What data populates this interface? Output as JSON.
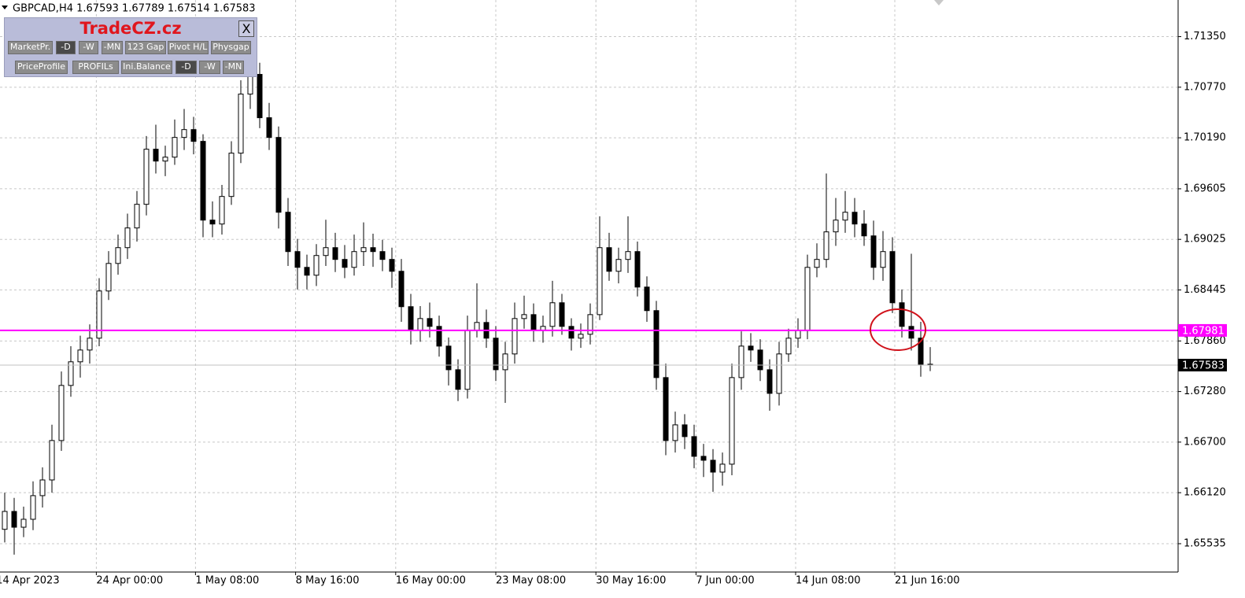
{
  "header": {
    "symbol_line": "GBPCAD,H4  1.67593 1.67789 1.67514 1.67583"
  },
  "panel": {
    "title": "TradeCZ.cz",
    "close": "X",
    "row1": [
      "MarketPr.",
      "-D",
      "-W",
      "-MN",
      "123 Gap",
      "Pivot H/L",
      "Physgap"
    ],
    "row2": [
      "PriceProfile",
      "PROFILs",
      "Ini.Balance",
      "-D",
      "-W",
      "-MN"
    ]
  },
  "chart_data": {
    "type": "candlestick",
    "up_color": "#ffffff",
    "down_color": "#000000",
    "line_color": "#000000",
    "grid": true,
    "ylim": [
      1.6521,
      1.7177
    ],
    "yticks": [
      {
        "value": 1.7135,
        "label": "1.71350"
      },
      {
        "value": 1.7077,
        "label": "1.70770"
      },
      {
        "value": 1.7019,
        "label": "1.70190"
      },
      {
        "value": 1.69605,
        "label": "1.69605"
      },
      {
        "value": 1.69025,
        "label": "1.69025"
      },
      {
        "value": 1.68445,
        "label": "1.68445"
      },
      {
        "value": 1.6786,
        "label": "1.67860"
      },
      {
        "value": 1.6728,
        "label": "1.67280"
      },
      {
        "value": 1.667,
        "label": "1.66700"
      },
      {
        "value": 1.6612,
        "label": "1.66120"
      },
      {
        "value": 1.65535,
        "label": "1.65535"
      }
    ],
    "xlim": [
      -0.5,
      124.25
    ],
    "xticks": [
      {
        "value": -0.9,
        "label": "14 Apr 2023"
      },
      {
        "value": 9.7,
        "label": "24 Apr 00:00"
      },
      {
        "value": 20.2,
        "label": "1 May 08:00"
      },
      {
        "value": 30.8,
        "label": "8 May 16:00"
      },
      {
        "value": 41.4,
        "label": "16 May 00:00"
      },
      {
        "value": 52.0,
        "label": "23 May 08:00"
      },
      {
        "value": 62.6,
        "label": "30 May 16:00"
      },
      {
        "value": 73.2,
        "label": "7 Jun 00:00"
      },
      {
        "value": 83.75,
        "label": "14 Jun 08:00"
      },
      {
        "value": 94.25,
        "label": "21 Jun 16:00"
      }
    ],
    "open": [
      1.657,
      1.65905,
      1.65724,
      1.65815,
      1.66086,
      1.66266,
      1.66718,
      1.6735,
      1.67621,
      1.67756,
      1.67892,
      1.68433,
      1.68749,
      1.6893,
      1.69156,
      1.69427,
      1.70059,
      1.69923,
      1.69968,
      1.70194,
      1.70284,
      1.70149,
      1.69246,
      1.69201,
      1.69517,
      1.70014,
      1.70691,
      1.70917,
      1.7042,
      1.70194,
      1.69336,
      1.68885,
      1.68704,
      1.68614,
      1.6884,
      1.6893,
      1.68795,
      1.68704,
      1.68885,
      1.6893,
      1.68885,
      1.68795,
      1.68659,
      1.68253,
      1.67982,
      1.68117,
      1.68027,
      1.67801,
      1.6753,
      1.67305,
      1.67982,
      1.68072,
      1.67892,
      1.6753,
      1.67711,
      1.68117,
      1.68162,
      1.67982,
      1.68027,
      1.68298,
      1.68027,
      1.67892,
      1.67937,
      1.68162,
      1.6893,
      1.68659,
      1.68795,
      1.68885,
      1.68478,
      1.68208,
      1.6744,
      1.66718,
      1.66898,
      1.66763,
      1.66537,
      1.66492,
      1.66356,
      1.66447,
      1.6744,
      1.67801,
      1.67756,
      1.6753,
      1.67259,
      1.67711,
      1.67892,
      1.67982,
      1.68704,
      1.68795,
      1.69111,
      1.69246,
      1.69336,
      1.69201,
      1.69065,
      1.68704,
      1.68885,
      1.68298,
      1.68027,
      1.67892,
      1.67593
    ],
    "high": [
      1.6612,
      1.6606,
      1.6596,
      1.6625,
      1.6641,
      1.669,
      1.6751,
      1.678,
      1.6792,
      1.6805,
      1.6858,
      1.6889,
      1.6908,
      1.6932,
      1.6958,
      1.7021,
      1.7034,
      1.701,
      1.704,
      1.7052,
      1.7043,
      1.7023,
      1.6946,
      1.6965,
      1.7015,
      1.7085,
      1.7123,
      1.7105,
      1.7059,
      1.7032,
      1.695,
      1.6903,
      1.6885,
      1.6897,
      1.6925,
      1.691,
      1.6896,
      1.6908,
      1.6922,
      1.6909,
      1.6902,
      1.6893,
      1.688,
      1.684,
      1.6826,
      1.683,
      1.6815,
      1.679,
      1.6765,
      1.6815,
      1.6852,
      1.6822,
      1.6803,
      1.6785,
      1.683,
      1.6838,
      1.6829,
      1.6815,
      1.6855,
      1.684,
      1.6812,
      1.6806,
      1.6829,
      1.6929,
      1.691,
      1.6893,
      1.6929,
      1.69,
      1.686,
      1.6832,
      1.676,
      1.6705,
      1.6702,
      1.669,
      1.6668,
      1.6662,
      1.6658,
      1.676,
      1.6797,
      1.6795,
      1.6788,
      1.6765,
      1.6785,
      1.68,
      1.6812,
      1.6885,
      1.6898,
      1.6978,
      1.695,
      1.6958,
      1.695,
      1.6936,
      1.6924,
      1.6912,
      1.6905,
      1.6845,
      1.6886,
      1.6808,
      1.67789
    ],
    "low": [
      1.6555,
      1.6541,
      1.6561,
      1.6569,
      1.6595,
      1.6612,
      1.666,
      1.6722,
      1.6744,
      1.676,
      1.678,
      1.6833,
      1.6862,
      1.688,
      1.69,
      1.693,
      1.6978,
      1.6975,
      1.6988,
      1.7005,
      1.7,
      1.6905,
      1.6905,
      1.6908,
      1.6942,
      1.699,
      1.7052,
      1.703,
      1.7005,
      1.6915,
      1.6872,
      1.6845,
      1.6845,
      1.6849,
      1.6872,
      1.6865,
      1.6858,
      1.6861,
      1.6872,
      1.6871,
      1.6866,
      1.6847,
      1.6808,
      1.6782,
      1.6785,
      1.679,
      1.6768,
      1.6735,
      1.6717,
      1.672,
      1.679,
      1.6778,
      1.674,
      1.6715,
      1.676,
      1.68,
      1.6785,
      1.6784,
      1.6791,
      1.6793,
      1.6775,
      1.6778,
      1.6782,
      1.681,
      1.6855,
      1.6852,
      1.6864,
      1.6837,
      1.6808,
      1.673,
      1.6655,
      1.6658,
      1.6662,
      1.664,
      1.663,
      1.6613,
      1.662,
      1.6632,
      1.673,
      1.6762,
      1.674,
      1.6706,
      1.6712,
      1.6762,
      1.6778,
      1.6788,
      1.6859,
      1.687,
      1.6895,
      1.691,
      1.6905,
      1.6895,
      1.6856,
      1.6855,
      1.6818,
      1.679,
      1.6775,
      1.6745,
      1.67514
    ],
    "close": [
      1.65905,
      1.65724,
      1.65815,
      1.66086,
      1.66266,
      1.66718,
      1.6735,
      1.67621,
      1.67756,
      1.67892,
      1.68433,
      1.68749,
      1.6893,
      1.69156,
      1.69427,
      1.70059,
      1.69923,
      1.69968,
      1.70194,
      1.70284,
      1.70149,
      1.69246,
      1.69201,
      1.69517,
      1.70014,
      1.70691,
      1.70917,
      1.7042,
      1.70194,
      1.69336,
      1.68885,
      1.68704,
      1.68614,
      1.6884,
      1.6893,
      1.68795,
      1.68704,
      1.68885,
      1.6893,
      1.68885,
      1.68795,
      1.68659,
      1.68253,
      1.67982,
      1.68117,
      1.68027,
      1.67801,
      1.6753,
      1.67305,
      1.67982,
      1.68072,
      1.67892,
      1.6753,
      1.67711,
      1.68117,
      1.68162,
      1.67982,
      1.68027,
      1.68298,
      1.68027,
      1.67892,
      1.67937,
      1.68162,
      1.6893,
      1.68659,
      1.68795,
      1.68885,
      1.68478,
      1.68208,
      1.6744,
      1.66718,
      1.66898,
      1.66763,
      1.66537,
      1.66492,
      1.66356,
      1.66447,
      1.6744,
      1.67801,
      1.67756,
      1.6753,
      1.67259,
      1.67711,
      1.67892,
      1.67982,
      1.68704,
      1.68795,
      1.69111,
      1.69246,
      1.69336,
      1.69201,
      1.69065,
      1.68704,
      1.68885,
      1.68298,
      1.68027,
      1.67892,
      1.67593,
      1.67583
    ],
    "price_lines": [
      {
        "value": 1.67981,
        "color": "#ff00ff",
        "text_color": "#ffffff"
      },
      {
        "value": 1.67583,
        "color": "#c0c0c0",
        "box_color": "#000000",
        "text_color": "#ffffff"
      }
    ]
  }
}
